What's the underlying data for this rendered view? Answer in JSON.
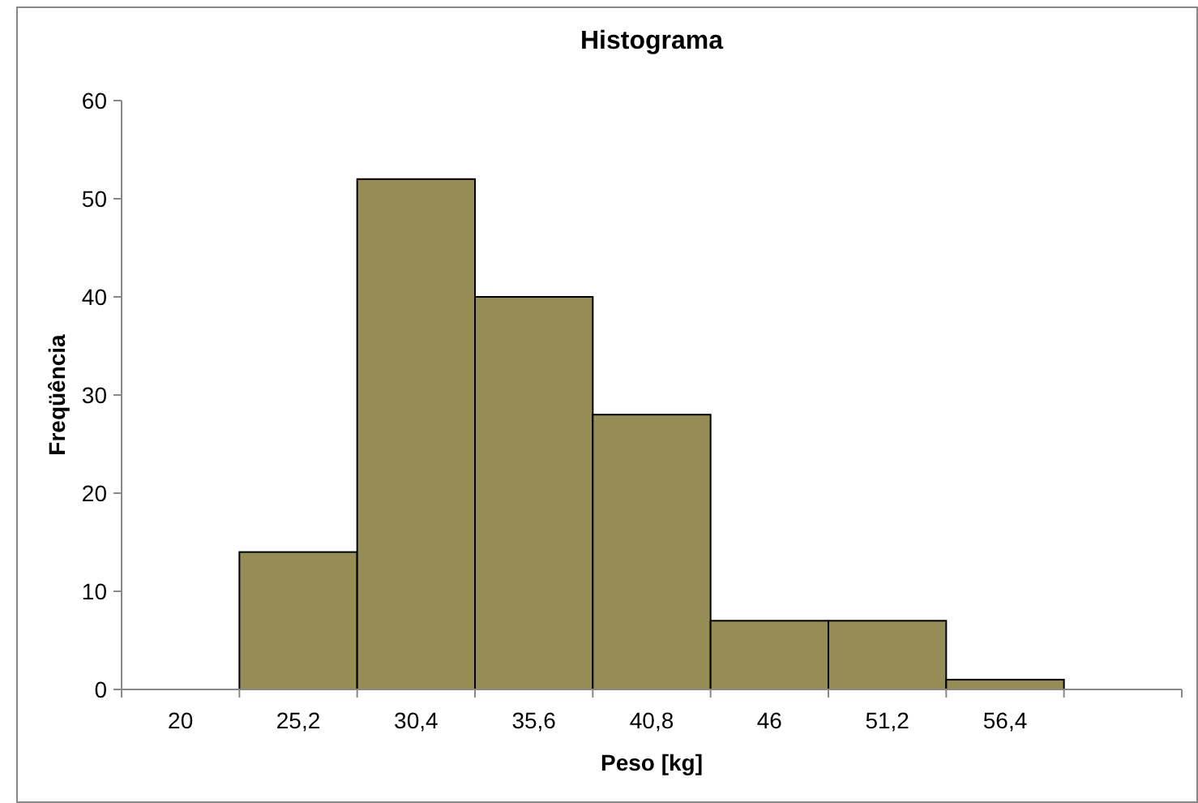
{
  "chart_data": {
    "type": "bar",
    "title": "Histograma",
    "xlabel": "Peso [kg]",
    "ylabel": "Freqüência",
    "categories": [
      "20",
      "25,2",
      "30,4",
      "35,6",
      "40,8",
      "46",
      "51,2",
      "56,4",
      null
    ],
    "values": [
      0,
      14,
      52,
      40,
      28,
      7,
      7,
      1,
      0
    ],
    "color": "#968c56",
    "ylim": [
      0,
      60
    ],
    "yticks": [
      0,
      10,
      20,
      30,
      40,
      50,
      60
    ],
    "grid": false
  }
}
